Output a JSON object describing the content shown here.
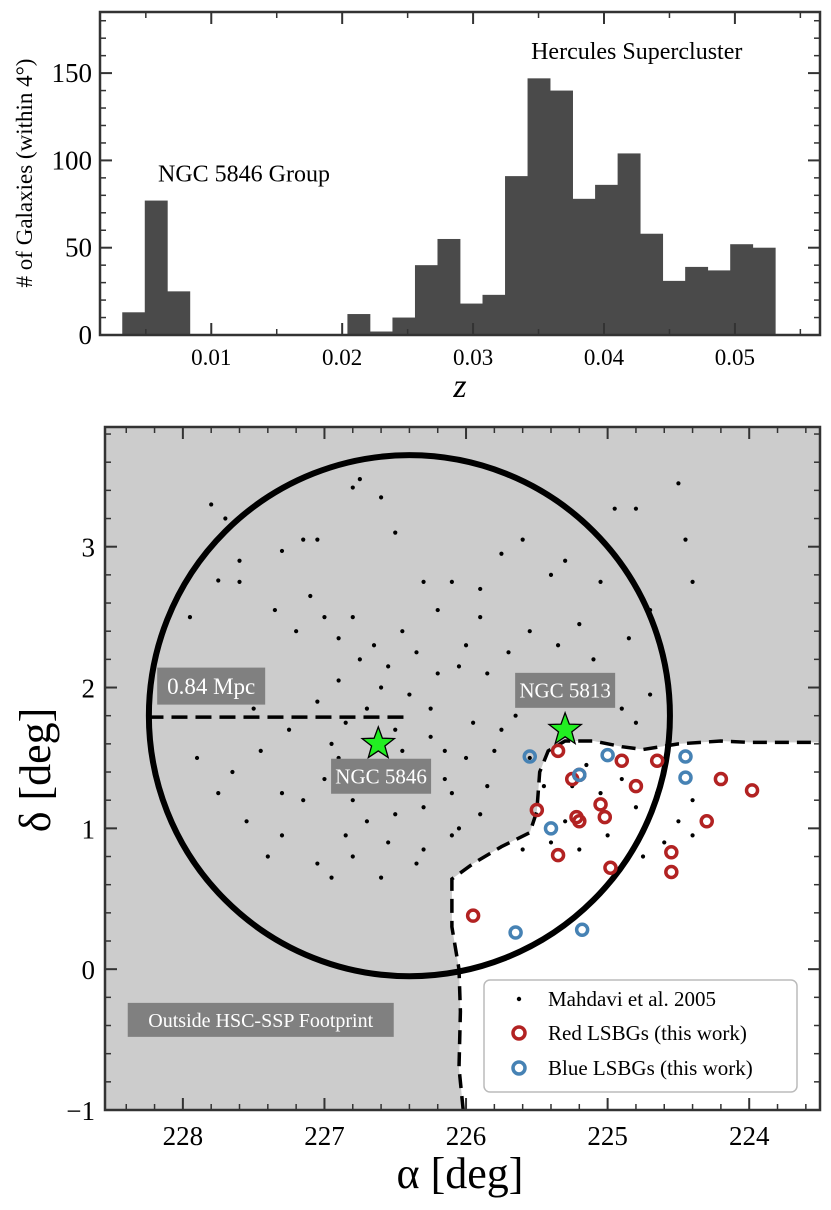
{
  "colors": {
    "bar": "#4a4a4a",
    "footprint_bg": "#cccccc",
    "label_box": "#808080",
    "star": "#22ee22",
    "red_lsbg": "#b22222",
    "blue_lsbg": "#4682b4",
    "axis": "#333333"
  },
  "chart_data": [
    {
      "type": "bar",
      "title": "",
      "xlabel": "z",
      "ylabel": "# of Galaxies (within 4°)",
      "xlim": [
        0.0015,
        0.0565
      ],
      "ylim": [
        0,
        185
      ],
      "xticks": [
        "0.01",
        "0.02",
        "0.03",
        "0.04",
        "0.05"
      ],
      "xtick_values": [
        0.01,
        0.02,
        0.03,
        0.04,
        0.05
      ],
      "yticks": [
        "0",
        "50",
        "100",
        "150"
      ],
      "ytick_values": [
        0,
        50,
        100,
        150
      ],
      "bin_width": 0.00172,
      "bin_starts": [
        0.0032,
        0.00492,
        0.00664,
        0.00836,
        0.01008,
        0.0118,
        0.01352,
        0.01524,
        0.01696,
        0.01868,
        0.0204,
        0.02212,
        0.02384,
        0.02556,
        0.02728,
        0.029,
        0.03072,
        0.03244,
        0.03416,
        0.03588,
        0.0376,
        0.03932,
        0.04104,
        0.04276,
        0.04448,
        0.0462,
        0.04792,
        0.04964,
        0.05136,
        0.05308
      ],
      "counts": [
        13,
        77,
        25,
        0,
        0,
        0,
        0,
        0,
        0,
        0,
        12,
        2,
        10,
        40,
        55,
        18,
        23,
        91,
        147,
        140,
        78,
        86,
        104,
        58,
        31,
        39,
        37,
        52,
        50,
        0
      ],
      "annotations": [
        {
          "text": "NGC 5846 Group",
          "x": 0.0125,
          "y": 88
        },
        {
          "text": "Hercules Supercluster",
          "x": 0.0425,
          "y": 158
        }
      ]
    },
    {
      "type": "scatter",
      "title": "",
      "xlabel": "α [deg]",
      "ylabel": "δ [deg]",
      "xlim": [
        228.55,
        223.5
      ],
      "ylim": [
        -1,
        3.85
      ],
      "xticks": [
        "228",
        "227",
        "226",
        "225",
        "224"
      ],
      "xtick_values": [
        228,
        227,
        226,
        225,
        224
      ],
      "yticks": [
        "−1",
        "0",
        "1",
        "2",
        "3"
      ],
      "ytick_values": [
        -1,
        0,
        1,
        2,
        3
      ],
      "circle": {
        "center_ra": 226.4,
        "center_dec": 1.8,
        "radius_deg": 1.85
      },
      "scale_bar": {
        "label": "0.84 Mpc",
        "ra_start": 228.25,
        "ra_end": 226.4,
        "dec": 1.79
      },
      "footprint_label": "Outside HSC-SSP Footprint",
      "footprint_boundary": [
        [
          226.02,
          -1.0
        ],
        [
          226.05,
          -0.7
        ],
        [
          226.04,
          -0.3
        ],
        [
          226.05,
          0.0
        ],
        [
          226.1,
          0.3
        ],
        [
          226.1,
          0.64
        ],
        [
          225.95,
          0.75
        ],
        [
          225.75,
          0.87
        ],
        [
          225.55,
          0.97
        ],
        [
          225.5,
          1.12
        ],
        [
          225.48,
          1.4
        ],
        [
          225.42,
          1.55
        ],
        [
          225.3,
          1.62
        ],
        [
          225.1,
          1.62
        ],
        [
          224.9,
          1.58
        ],
        [
          224.75,
          1.56
        ],
        [
          224.5,
          1.6
        ],
        [
          224.2,
          1.62
        ],
        [
          224.0,
          1.61
        ],
        [
          223.5,
          1.61
        ]
      ],
      "stars": [
        {
          "name": "NGC 5846",
          "ra": 226.62,
          "dec": 1.6,
          "label_ra": 226.6,
          "label_dec": 1.37
        },
        {
          "name": "NGC 5813",
          "ra": 225.3,
          "dec": 1.7,
          "label_ra": 225.3,
          "label_dec": 1.98
        }
      ],
      "series": [
        {
          "name": "Mahdavi et al. 2005",
          "marker": "dot",
          "points": [
            [
              227.8,
              3.3
            ],
            [
              227.75,
              2.76
            ],
            [
              227.6,
              2.9
            ],
            [
              227.7,
              3.2
            ],
            [
              227.3,
              2.97
            ],
            [
              227.15,
              3.05
            ],
            [
              227.05,
              3.05
            ],
            [
              226.8,
              3.42
            ],
            [
              226.75,
              3.48
            ],
            [
              226.6,
              3.35
            ],
            [
              226.5,
              3.1
            ],
            [
              226.3,
              2.75
            ],
            [
              226.1,
              2.75
            ],
            [
              225.9,
              2.7
            ],
            [
              225.75,
              2.95
            ],
            [
              225.6,
              3.05
            ],
            [
              225.4,
              2.8
            ],
            [
              225.3,
              2.9
            ],
            [
              225.05,
              2.75
            ],
            [
              224.8,
              3.27
            ],
            [
              224.95,
              3.27
            ],
            [
              224.7,
              2.55
            ],
            [
              224.5,
              3.45
            ],
            [
              224.4,
              2.75
            ],
            [
              224.45,
              3.05
            ],
            [
              227.95,
              2.5
            ],
            [
              227.6,
              2.75
            ],
            [
              227.35,
              2.55
            ],
            [
              227.2,
              2.4
            ],
            [
              227.1,
              2.65
            ],
            [
              227.0,
              2.5
            ],
            [
              226.9,
              2.35
            ],
            [
              226.8,
              2.5
            ],
            [
              226.65,
              2.3
            ],
            [
              226.55,
              2.15
            ],
            [
              226.45,
              2.4
            ],
            [
              226.35,
              2.25
            ],
            [
              226.2,
              2.1
            ],
            [
              226.0,
              2.3
            ],
            [
              225.9,
              2.5
            ],
            [
              225.85,
              2.1
            ],
            [
              226.75,
              2.2
            ],
            [
              226.9,
              2.05
            ],
            [
              227.05,
              1.9
            ],
            [
              226.6,
              2.0
            ],
            [
              226.4,
              1.95
            ],
            [
              226.25,
              1.85
            ],
            [
              226.7,
              1.85
            ],
            [
              226.85,
              1.75
            ],
            [
              226.5,
              1.7
            ],
            [
              226.45,
              1.55
            ],
            [
              226.3,
              1.45
            ],
            [
              226.15,
              1.35
            ],
            [
              226.9,
              1.5
            ],
            [
              227.0,
              1.35
            ],
            [
              227.15,
              1.2
            ],
            [
              226.8,
              1.2
            ],
            [
              226.7,
              1.05
            ],
            [
              226.5,
              1.1
            ],
            [
              226.3,
              1.15
            ],
            [
              226.1,
              1.25
            ],
            [
              226.55,
              0.9
            ],
            [
              226.3,
              0.85
            ],
            [
              226.1,
              0.95
            ],
            [
              226.8,
              0.8
            ],
            [
              227.05,
              0.75
            ],
            [
              227.3,
              0.95
            ],
            [
              227.55,
              1.05
            ],
            [
              227.75,
              1.25
            ],
            [
              227.9,
              1.5
            ],
            [
              227.65,
              1.4
            ],
            [
              227.45,
              1.55
            ],
            [
              227.25,
              1.7
            ],
            [
              227.5,
              1.85
            ],
            [
              227.8,
              1.95
            ],
            [
              227.3,
              1.25
            ],
            [
              226.0,
              1.5
            ],
            [
              225.8,
              1.55
            ],
            [
              225.75,
              1.7
            ],
            [
              225.95,
              1.75
            ],
            [
              225.65,
              1.8
            ],
            [
              225.6,
              1.9
            ],
            [
              225.45,
              2.05
            ],
            [
              225.35,
              2.3
            ],
            [
              225.2,
              2.45
            ],
            [
              225.1,
              2.2
            ],
            [
              225.0,
              2.0
            ],
            [
              224.9,
              1.85
            ],
            [
              224.8,
              1.75
            ],
            [
              224.7,
              1.95
            ],
            [
              226.2,
              2.55
            ],
            [
              226.05,
              2.15
            ],
            [
              225.7,
              2.25
            ],
            [
              225.55,
              2.4
            ],
            [
              224.85,
              2.35
            ],
            [
              225.25,
              1.3
            ],
            [
              225.15,
              1.45
            ],
            [
              225.05,
              1.25
            ],
            [
              224.9,
              1.35
            ],
            [
              224.8,
              1.15
            ],
            [
              224.65,
              1.25
            ],
            [
              224.5,
              1.05
            ],
            [
              224.4,
              1.2
            ],
            [
              224.6,
              0.9
            ],
            [
              224.75,
              0.8
            ],
            [
              225.0,
              0.95
            ],
            [
              225.2,
              0.85
            ],
            [
              225.4,
              0.9
            ],
            [
              225.6,
              0.85
            ],
            [
              225.3,
              1.05
            ],
            [
              225.45,
              1.3
            ],
            [
              225.55,
              1.5
            ],
            [
              224.4,
              0.95
            ],
            [
              226.35,
              0.75
            ],
            [
              226.6,
              0.65
            ],
            [
              226.95,
              0.65
            ],
            [
              227.4,
              0.8
            ],
            [
              226.85,
              0.95
            ],
            [
              226.65,
              1.4
            ],
            [
              226.95,
              1.6
            ],
            [
              226.25,
              1.65
            ],
            [
              226.05,
              1.0
            ],
            [
              225.9,
              1.1
            ],
            [
              225.85,
              1.3
            ],
            [
              226.15,
              1.55
            ]
          ]
        },
        {
          "name": "Red LSBGs (this work)",
          "marker": "ring",
          "points": [
            [
              225.35,
              1.55
            ],
            [
              225.25,
              1.35
            ],
            [
              225.2,
              1.38
            ],
            [
              225.05,
              1.17
            ],
            [
              225.02,
              1.08
            ],
            [
              225.5,
              1.13
            ],
            [
              225.2,
              1.05
            ],
            [
              225.22,
              1.08
            ],
            [
              225.35,
              0.81
            ],
            [
              224.98,
              0.72
            ],
            [
              224.9,
              1.48
            ],
            [
              224.8,
              1.3
            ],
            [
              224.65,
              1.48
            ],
            [
              224.55,
              0.83
            ],
            [
              224.55,
              0.69
            ],
            [
              224.3,
              1.05
            ],
            [
              224.2,
              1.35
            ],
            [
              223.98,
              1.27
            ],
            [
              225.95,
              0.38
            ]
          ]
        },
        {
          "name": "Blue LSBGs (this work)",
          "marker": "ring",
          "points": [
            [
              225.55,
              1.51
            ],
            [
              225.2,
              1.38
            ],
            [
              225.0,
              1.52
            ],
            [
              225.4,
              1.0
            ],
            [
              224.45,
              1.51
            ],
            [
              224.45,
              1.36
            ],
            [
              225.65,
              0.26
            ],
            [
              225.18,
              0.28
            ]
          ]
        }
      ]
    }
  ]
}
